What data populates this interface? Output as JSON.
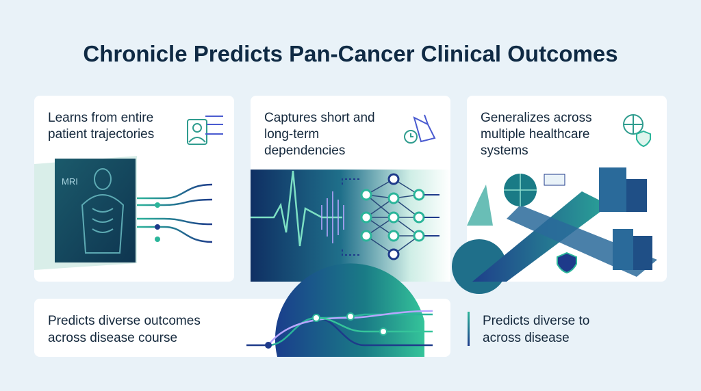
{
  "title": "Chronicle Predicts Pan-Cancer Clinical Outcomes",
  "cards": [
    {
      "text_lines": [
        "Learns from entire",
        "patient trajectories"
      ],
      "image_label": "MRI"
    },
    {
      "text_lines": [
        "Captures short and",
        "long-term",
        "dependencies"
      ]
    },
    {
      "text_lines": [
        "Generalizes across",
        "multiple healthcare",
        "systems"
      ]
    }
  ],
  "bottom_card": {
    "text_lines": [
      "Predicts diverse outcomes",
      "across disease course"
    ]
  },
  "side_note": {
    "text_lines": [
      "Predicts diverse to",
      "across disease"
    ]
  }
}
